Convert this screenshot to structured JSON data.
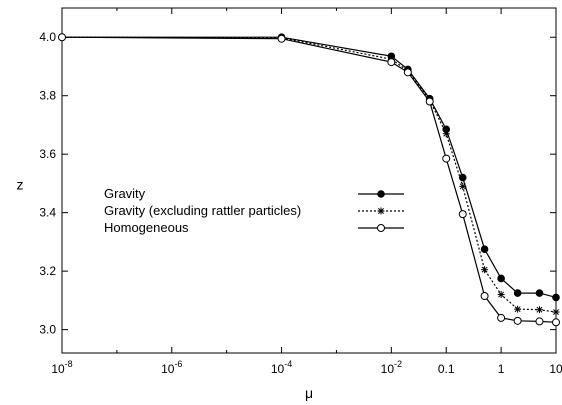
{
  "chart_data": {
    "type": "line",
    "xlabel": "μ",
    "ylabel": "z",
    "xscale": "log",
    "xlim": [
      1e-08,
      10
    ],
    "ylim": [
      2.92,
      4.1
    ],
    "grid": false,
    "legend_position": "center-left",
    "x_ticks": [
      {
        "value": 1e-08,
        "base": "10",
        "exp": "-8"
      },
      {
        "value": 1e-06,
        "base": "10",
        "exp": "-6"
      },
      {
        "value": 0.0001,
        "base": "10",
        "exp": "-4"
      },
      {
        "value": 0.01,
        "base": "10",
        "exp": "-2"
      },
      {
        "value": 0.1,
        "base": "0.1",
        "exp": ""
      },
      {
        "value": 1,
        "base": "1",
        "exp": ""
      },
      {
        "value": 10,
        "base": "10",
        "exp": ""
      }
    ],
    "y_ticks": [
      "3.0",
      "3.2",
      "3.4",
      "3.6",
      "3.8",
      "4.0"
    ],
    "series": [
      {
        "name": "Gravity",
        "marker": "filled-circle",
        "line": "solid",
        "x": [
          1e-08,
          0.0001,
          0.01,
          0.02,
          0.05,
          0.1,
          0.2,
          0.5,
          1,
          2,
          5,
          10
        ],
        "y": [
          4.0,
          4.0,
          3.935,
          3.89,
          3.79,
          3.685,
          3.52,
          3.275,
          3.175,
          3.125,
          3.125,
          3.11
        ]
      },
      {
        "name": "Gravity (excluding rattler particles)",
        "marker": "asterisk",
        "line": "dotted",
        "x": [
          1e-08,
          0.0001,
          0.01,
          0.02,
          0.05,
          0.1,
          0.2,
          0.5,
          1,
          2,
          5,
          10
        ],
        "y": [
          4.0,
          3.998,
          3.925,
          3.885,
          3.785,
          3.67,
          3.49,
          3.205,
          3.12,
          3.07,
          3.068,
          3.06
        ]
      },
      {
        "name": "Homogeneous",
        "marker": "open-circle",
        "line": "solid",
        "x": [
          1e-08,
          0.0001,
          0.01,
          0.02,
          0.05,
          0.1,
          0.2,
          0.5,
          1,
          2,
          5,
          10
        ],
        "y": [
          4.0,
          3.995,
          3.915,
          3.88,
          3.78,
          3.585,
          3.395,
          3.115,
          3.04,
          3.03,
          3.028,
          3.025
        ]
      }
    ]
  }
}
